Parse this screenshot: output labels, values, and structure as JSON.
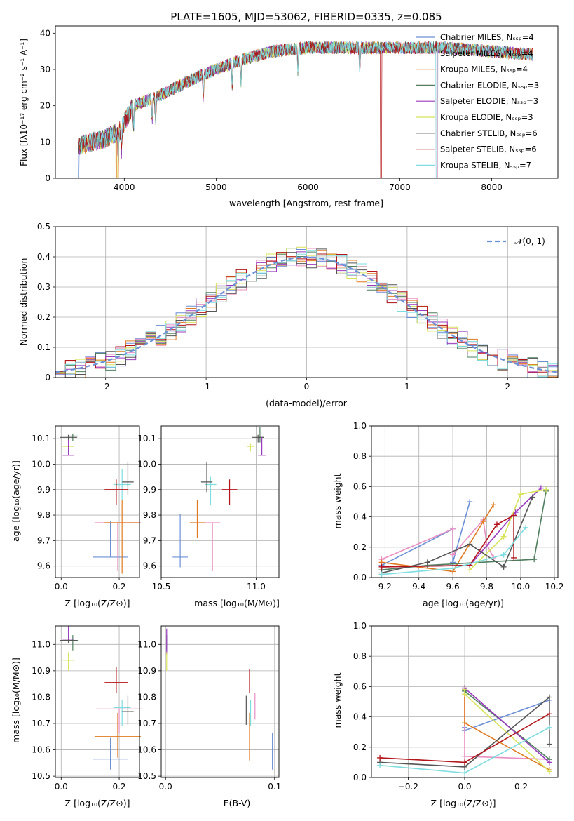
{
  "chart_data": [
    {
      "id": "spectrum",
      "type": "line",
      "title": "PLATE=1605, MJD=53062, FIBERID=0335, z=0.085",
      "xlabel": "wavelength [Angstrom, rest frame]",
      "ylabel": "Flux [fλ10⁻¹⁷ erg cm⁻² s⁻¹ A⁻¹]",
      "xlim": [
        3250,
        8720
      ],
      "ylim": [
        0,
        42
      ],
      "xticks": [
        4000,
        5000,
        6000,
        7000,
        8000
      ],
      "yticks": [
        0,
        10,
        20,
        30,
        40
      ],
      "grid": false,
      "legend_placement": "upper-right",
      "series": [
        {
          "name": "Chabrier MILES, Nₛₛₚ=4",
          "color": "#6b8fd6"
        },
        {
          "name": "Salpeter MILES, Nₛₛₚ=4",
          "color": "#e98fc2"
        },
        {
          "name": "Kroupa MILES, Nₛₛₚ=4",
          "color": "#e0791f"
        },
        {
          "name": "Chabrier ELODIE, Nₛₛₚ=3",
          "color": "#4f7f5f"
        },
        {
          "name": "Salpeter ELODIE, Nₛₛₚ=3",
          "color": "#9b3bbf"
        },
        {
          "name": "Kroupa ELODIE, Nₛₛₚ=3",
          "color": "#d8e35a"
        },
        {
          "name": "Chabrier STELIB, Nₛₛₚ=6",
          "color": "#555555"
        },
        {
          "name": "Salpeter STELIB, Nₛₛₚ=6",
          "color": "#b3151a"
        },
        {
          "name": "Kroupa STELIB, Nₛₛₚ=7",
          "color": "#7fdde0"
        }
      ],
      "continuum": {
        "x": [
          3500,
          3800,
          3950,
          4100,
          4400,
          4800,
          5200,
          5600,
          6000,
          6500,
          7000,
          7500,
          8000,
          8500
        ],
        "y": [
          9,
          11,
          13,
          20,
          23,
          28,
          32,
          35,
          36,
          36,
          36,
          36,
          35,
          34
        ]
      }
    },
    {
      "id": "residuals",
      "type": "line",
      "xlabel": "(data-model)/error",
      "ylabel": "Normed distribution",
      "xlim": [
        -2.5,
        2.5
      ],
      "ylim": [
        0,
        0.5
      ],
      "xticks": [
        -2,
        -1,
        0,
        1,
        2
      ],
      "yticks": [
        0.0,
        0.1,
        0.2,
        0.3,
        0.4,
        0.5
      ],
      "grid": true,
      "legend": {
        "label": "𝒩(0, 1)",
        "color": "#6b8fd6",
        "placement": "upper-right"
      },
      "gaussian": {
        "mean": 0,
        "sigma": 1
      }
    },
    {
      "id": "age-vs-Z",
      "type": "scatter",
      "xlabel": "Z [log₁₀(Z/Z⊙)]",
      "ylabel": "age  [log₁₀(age/yr)]",
      "xlim": [
        -0.02,
        0.27
      ],
      "ylim": [
        9.555,
        10.15
      ],
      "xticks": [
        0.0,
        0.2
      ],
      "xticklabels": [
        "0.0",
        "0.2"
      ],
      "yticks": [
        9.6,
        9.7,
        9.8,
        9.9,
        10.0,
        10.1
      ],
      "yticklabels": [
        "9.6",
        "9.7",
        "9.8",
        "9.9",
        "10.0",
        "10.1"
      ],
      "grid": true,
      "points": [
        {
          "x": 0.17,
          "y": 9.635,
          "xerr": 0.06,
          "yerr": [
            0.0,
            0.14
          ],
          "color": "#6b8fd6"
        },
        {
          "x": 0.195,
          "y": 9.77,
          "xerr": 0.08,
          "yerr": [
            0.19,
            0.0
          ],
          "color": "#e98fc2"
        },
        {
          "x": 0.21,
          "y": 9.77,
          "xerr": 0.06,
          "yerr": [
            0.2,
            0.09
          ],
          "color": "#e0791f"
        },
        {
          "x": 0.21,
          "y": 9.92,
          "xerr": 0.03,
          "yerr": [
            0.06,
            0.06
          ],
          "color": "#7fdde0"
        },
        {
          "x": 0.23,
          "y": 9.93,
          "xerr": 0.02,
          "yerr": [
            0.05,
            0.08
          ],
          "color": "#555555"
        },
        {
          "x": 0.19,
          "y": 9.9,
          "xerr": 0.04,
          "yerr": [
            0.06,
            0.04
          ],
          "color": "#b3151a"
        },
        {
          "x": 0.04,
          "y": 10.11,
          "xerr": 0.02,
          "yerr": [
            0.02,
            0.01
          ],
          "color": "#4f7f5f"
        },
        {
          "x": 0.025,
          "y": 10.105,
          "xerr": 0.03,
          "yerr": [
            0.02,
            0.01
          ],
          "color": "#555555"
        },
        {
          "x": 0.025,
          "y": 10.07,
          "xerr": 0.02,
          "yerr": [
            0.02,
            0.02
          ],
          "color": "#d8e35a"
        },
        {
          "x": 0.025,
          "y": 10.035,
          "xerr": 0.02,
          "yerr": [
            0.0,
            0.06
          ],
          "color": "#9b3bbf"
        }
      ]
    },
    {
      "id": "age-vs-mass",
      "type": "scatter",
      "xlabel": "mass [log₁₀(M/M⊙)]",
      "xlim": [
        10.5,
        11.12
      ],
      "ylim": [
        9.555,
        10.15
      ],
      "xticks": [
        10.5,
        11.0
      ],
      "xticklabels": [
        "10.5",
        "11.0"
      ],
      "yticks": [
        9.6,
        9.7,
        9.8,
        9.9,
        10.0,
        10.1
      ],
      "yticklabels": [
        "9.6",
        "9.7",
        "9.8",
        "9.9",
        "10.0",
        "10.1"
      ],
      "grid": true,
      "points": [
        {
          "x": 10.6,
          "y": 9.635,
          "xerr": 0.04,
          "yerr": [
            0.04,
            0.17
          ],
          "color": "#6b8fd6"
        },
        {
          "x": 10.77,
          "y": 9.77,
          "xerr": 0.04,
          "yerr": [
            0.19,
            0.0
          ],
          "color": "#e98fc2"
        },
        {
          "x": 10.69,
          "y": 9.77,
          "xerr": 0.04,
          "yerr": [
            0.06,
            0.09
          ],
          "color": "#e0791f"
        },
        {
          "x": 10.76,
          "y": 9.92,
          "xerr": 0.03,
          "yerr": [
            0.08,
            0.03
          ],
          "color": "#7fdde0"
        },
        {
          "x": 10.74,
          "y": 9.93,
          "xerr": 0.03,
          "yerr": [
            0.04,
            0.08
          ],
          "color": "#555555"
        },
        {
          "x": 10.86,
          "y": 9.9,
          "xerr": 0.04,
          "yerr": [
            0.06,
            0.04
          ],
          "color": "#b3151a"
        },
        {
          "x": 11.02,
          "y": 10.105,
          "xerr": 0.02,
          "yerr": [
            0.02,
            0.04
          ],
          "color": "#4f7f5f"
        },
        {
          "x": 11.01,
          "y": 10.105,
          "xerr": 0.03,
          "yerr": [
            0.02,
            0.01
          ],
          "color": "#555555"
        },
        {
          "x": 10.97,
          "y": 10.07,
          "xerr": 0.02,
          "yerr": [
            0.02,
            0.01
          ],
          "color": "#d8e35a"
        },
        {
          "x": 11.03,
          "y": 10.035,
          "xerr": 0.02,
          "yerr": [
            0.0,
            0.07
          ],
          "color": "#9b3bbf"
        }
      ]
    },
    {
      "id": "weight-vs-age",
      "type": "line",
      "xlabel": "age  [log₁₀(age/yr)]",
      "ylabel": "mass weight",
      "xlim": [
        9.12,
        10.22
      ],
      "ylim": [
        0,
        1
      ],
      "xticks": [
        9.2,
        9.4,
        9.6,
        9.8,
        10.0,
        10.2
      ],
      "xticklabels": [
        "9.2",
        "9.4",
        "9.6",
        "9.8",
        "10.0",
        "10.2"
      ],
      "yticks": [
        0,
        0.2,
        0.4,
        0.6,
        0.8,
        1.0
      ],
      "yticklabels": [
        "0.0",
        "0.2",
        "0.4",
        "0.6",
        "0.8",
        "1.0"
      ],
      "grid": true,
      "series": [
        {
          "color": "#6b8fd6",
          "x": [
            9.18,
            9.6,
            9.6,
            9.7
          ],
          "y": [
            0.08,
            0.32,
            0.1,
            0.5
          ]
        },
        {
          "color": "#e98fc2",
          "x": [
            9.18,
            9.6,
            9.6,
            9.78,
            9.8,
            9.84
          ],
          "y": [
            0.12,
            0.32,
            0.15,
            0.38,
            0.22,
            0.13
          ]
        },
        {
          "color": "#e0791f",
          "x": [
            9.18,
            9.6,
            9.78,
            9.84
          ],
          "y": [
            0.1,
            0.04,
            0.37,
            0.48
          ]
        },
        {
          "color": "#4f7f5f",
          "x": [
            9.18,
            9.45,
            10.08,
            10.15
          ],
          "y": [
            0.05,
            0.08,
            0.12,
            0.57
          ]
        },
        {
          "color": "#9b3bbf",
          "x": [
            9.18,
            9.7,
            9.97,
            10.12
          ],
          "y": [
            0.07,
            0.08,
            0.43,
            0.59
          ]
        },
        {
          "color": "#d8e35a",
          "x": [
            9.7,
            9.9,
            10.0,
            10.15
          ],
          "y": [
            0.05,
            0.27,
            0.55,
            0.58
          ]
        },
        {
          "color": "#555555",
          "x": [
            9.18,
            9.45,
            9.7,
            9.9,
            10.07
          ],
          "y": [
            0.03,
            0.1,
            0.22,
            0.07,
            0.53
          ]
        },
        {
          "color": "#b3151a",
          "x": [
            9.18,
            9.7,
            9.86,
            9.96,
            9.96
          ],
          "y": [
            0.07,
            0.08,
            0.35,
            0.41,
            0.13
          ]
        },
        {
          "color": "#7fdde0",
          "x": [
            9.18,
            9.6,
            9.9,
            10.03
          ],
          "y": [
            0.02,
            0.06,
            0.15,
            0.33
          ]
        }
      ]
    },
    {
      "id": "mass-vs-Z",
      "type": "scatter",
      "xlabel": "Z [log₁₀(Z/Z⊙)]",
      "ylabel": "mass [log₁₀(M/M⊙)]",
      "xlim": [
        -0.02,
        0.27
      ],
      "ylim": [
        10.495,
        11.07
      ],
      "xticks": [
        0.0,
        0.2
      ],
      "xticklabels": [
        "0.0",
        "0.2"
      ],
      "yticks": [
        10.5,
        10.6,
        10.7,
        10.8,
        10.9,
        11.0
      ],
      "yticklabels": [
        "10.5",
        "10.6",
        "10.7",
        "10.8",
        "10.9",
        "11.0"
      ],
      "grid": true,
      "points": [
        {
          "x": 0.17,
          "y": 10.565,
          "xerr": 0.06,
          "yerr": [
            0.04,
            0.08
          ],
          "color": "#6b8fd6"
        },
        {
          "x": 0.2,
          "y": 10.755,
          "xerr": 0.08,
          "yerr": [
            0.09,
            0.0
          ],
          "color": "#e98fc2"
        },
        {
          "x": 0.195,
          "y": 10.65,
          "xerr": 0.08,
          "yerr": [
            0.08,
            0.09
          ],
          "color": "#e0791f"
        },
        {
          "x": 0.21,
          "y": 10.76,
          "xerr": 0.03,
          "yerr": [
            0.07,
            0.03
          ],
          "color": "#7fdde0"
        },
        {
          "x": 0.23,
          "y": 10.745,
          "xerr": 0.02,
          "yerr": [
            0.05,
            0.06
          ],
          "color": "#555555"
        },
        {
          "x": 0.19,
          "y": 10.855,
          "xerr": 0.04,
          "yerr": [
            0.04,
            0.06
          ],
          "color": "#b3151a"
        },
        {
          "x": 0.04,
          "y": 11.015,
          "xerr": 0.02,
          "yerr": [
            0.04,
            0.02
          ],
          "color": "#4f7f5f"
        },
        {
          "x": 0.025,
          "y": 11.015,
          "xerr": 0.03,
          "yerr": [
            0.01,
            0.01
          ],
          "color": "#555555"
        },
        {
          "x": 0.025,
          "y": 10.94,
          "xerr": 0.02,
          "yerr": [
            0.04,
            0.03
          ],
          "color": "#d8e35a"
        },
        {
          "x": 0.025,
          "y": 11.02,
          "xerr": 0.02,
          "yerr": [
            0.0,
            0.05
          ],
          "color": "#9b3bbf"
        }
      ]
    },
    {
      "id": "mass-vs-EBV",
      "type": "scatter",
      "xlabel": "E(B-V)",
      "xlim": [
        -0.004,
        0.104
      ],
      "ylim": [
        10.495,
        11.07
      ],
      "xticks": [
        0.0,
        0.1
      ],
      "xticklabels": [
        "0.0",
        "0.1"
      ],
      "yticks": [
        10.5,
        10.6,
        10.7,
        10.8,
        10.9,
        11.0
      ],
      "yticklabels": [
        "10.5",
        "10.6",
        "10.7",
        "10.8",
        "10.9",
        "11.0"
      ],
      "grid": true,
      "points": [
        {
          "x": 0.098,
          "y": 10.565,
          "yerr": [
            0.04,
            0.1
          ],
          "color": "#6b8fd6"
        },
        {
          "x": 0.082,
          "y": 10.755,
          "yerr": [
            0.04,
            0.06
          ],
          "color": "#e98fc2"
        },
        {
          "x": 0.077,
          "y": 10.65,
          "yerr": [
            0.09,
            0.09
          ],
          "color": "#e0791f"
        },
        {
          "x": 0.078,
          "y": 10.76,
          "yerr": [
            0.07,
            0.03
          ],
          "color": "#7fdde0"
        },
        {
          "x": 0.074,
          "y": 10.745,
          "yerr": [
            0.05,
            0.06
          ],
          "color": "#555555"
        },
        {
          "x": 0.077,
          "y": 10.855,
          "yerr": [
            0.04,
            0.05
          ],
          "color": "#b3151a"
        },
        {
          "x": 0.001,
          "y": 11.015,
          "yerr": [
            0.04,
            0.02
          ],
          "color": "#4f7f5f"
        },
        {
          "x": 0.001,
          "y": 11.0,
          "yerr": [
            0.04,
            0.06
          ],
          "color": "#9b3bbf"
        },
        {
          "x": 0.001,
          "y": 10.94,
          "yerr": [
            0.04,
            0.03
          ],
          "color": "#d8e35a"
        }
      ]
    },
    {
      "id": "weight-vs-Z",
      "type": "line",
      "xlabel": "Z [log₁₀(Z/Z⊙)]",
      "ylabel": "mass weight",
      "xlim": [
        -0.33,
        0.33
      ],
      "ylim": [
        0,
        1
      ],
      "xticks": [
        -0.2,
        0.0,
        0.2
      ],
      "xticklabels": [
        "−0.2",
        "0.0",
        "0.2"
      ],
      "yticks": [
        0,
        0.2,
        0.4,
        0.6,
        0.8,
        1.0
      ],
      "yticklabels": [
        "0.0",
        "0.2",
        "0.4",
        "0.6",
        "0.8",
        "1.0"
      ],
      "grid": true,
      "series": [
        {
          "color": "#6b8fd6",
          "x": [
            0.0,
            0.0,
            0.3
          ],
          "y": [
            0.33,
            0.31,
            0.51
          ]
        },
        {
          "color": "#e98fc2",
          "x": [
            0.0,
            0.0,
            0.3
          ],
          "y": [
            0.58,
            0.14,
            0.12
          ]
        },
        {
          "color": "#e0791f",
          "x": [
            0.0,
            0.0,
            0.3
          ],
          "y": [
            0.57,
            0.36,
            0.05
          ]
        },
        {
          "color": "#4f7f5f",
          "x": [
            0.0,
            0.0,
            0.3
          ],
          "y": [
            0.57,
            0.57,
            0.12
          ]
        },
        {
          "color": "#9b3bbf",
          "x": [
            0.0,
            0.0,
            0.3
          ],
          "y": [
            0.59,
            0.59,
            0.1
          ]
        },
        {
          "color": "#d8e35a",
          "x": [
            0.0,
            0.0,
            0.3
          ],
          "y": [
            0.58,
            0.55,
            0.04
          ]
        },
        {
          "color": "#555555",
          "x": [
            -0.3,
            0.0,
            0.3,
            0.3
          ],
          "y": [
            0.1,
            0.07,
            0.53,
            0.22
          ]
        },
        {
          "color": "#b3151a",
          "x": [
            -0.3,
            0.0,
            0.3
          ],
          "y": [
            0.13,
            0.1,
            0.42
          ]
        },
        {
          "color": "#7fdde0",
          "x": [
            -0.3,
            0.0,
            0.3
          ],
          "y": [
            0.08,
            0.03,
            0.33
          ]
        }
      ]
    }
  ]
}
